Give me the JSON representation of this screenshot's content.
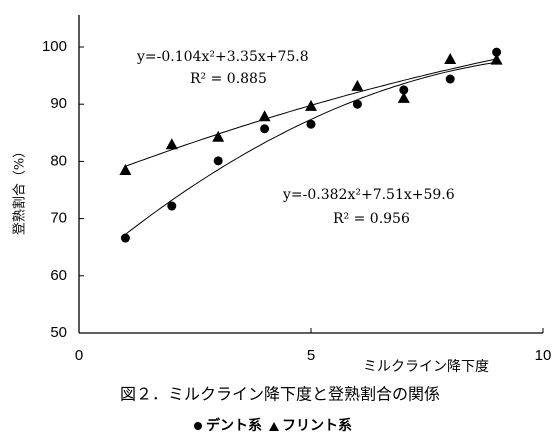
{
  "chart_data": {
    "type": "scatter",
    "caption": "図２．ミルクライン降下度と登熟割合の関係",
    "x_label": "ミルクライン降下度",
    "y_label": "登熟割合（%）",
    "x": [
      1,
      2,
      3,
      4,
      5,
      6,
      7,
      8,
      9
    ],
    "series": [
      {
        "name": "デント系",
        "marker": "circle",
        "color": "#000000",
        "values": [
          66.6,
          72.2,
          80.1,
          85.7,
          86.5,
          90,
          92.5,
          94.4,
          99.1
        ]
      },
      {
        "name": "フリント系",
        "marker": "triangle",
        "color": "#000000",
        "values": [
          78.5,
          83,
          84.3,
          87.9,
          89.7,
          93.2,
          91.1,
          97.9,
          97.8
        ]
      }
    ],
    "trendline": "quadratic",
    "annotations": [
      "y=-0.104x²+3.35x+75.8",
      "R² = 0.885",
      "y=-0.382x²+7.51x+59.6",
      "R² = 0.956"
    ],
    "xlim": [
      0,
      10
    ],
    "xticks": [
      0,
      5,
      10
    ],
    "ylim": [
      50,
      100
    ],
    "yticks": [
      50,
      60,
      70,
      80,
      90,
      100
    ]
  }
}
